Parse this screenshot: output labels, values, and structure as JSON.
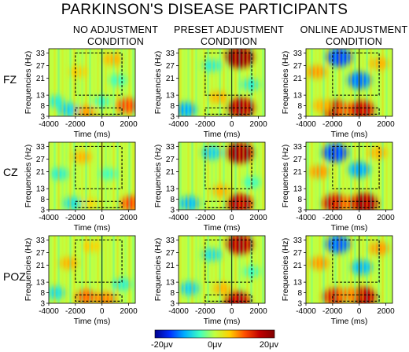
{
  "title": "PARKINSON'S DISEASE PARTICIPANTS",
  "conditions": [
    {
      "line1": "NO ADJUSTMENT",
      "line2": "CONDITION"
    },
    {
      "line1": "PRESET ADJUSTMENT",
      "line2": "CONDITION"
    },
    {
      "line1": "ONLINE ADJUSTMENT",
      "line2": "CONDITION"
    }
  ],
  "electrodes": [
    "FZ",
    "CZ",
    "POZ"
  ],
  "chart_data": {
    "type": "heatmap",
    "title": "PARKINSON'S DISEASE PARTICIPANTS",
    "xlabel": "Time (ms)",
    "ylabel": "Frequencies (Hz)",
    "xlim": [
      -4000,
      2500
    ],
    "ylim": [
      3,
      35
    ],
    "x_ticks": [
      -4000,
      -2000,
      0,
      2000
    ],
    "x_tick_labels": [
      "-4000",
      "-2000",
      "0",
      "2000"
    ],
    "y_ticks": [
      3,
      8,
      13,
      21,
      27,
      33
    ],
    "y_tick_labels": [
      "3",
      "8",
      "13",
      "21",
      "27",
      "33"
    ],
    "event_marker_x": 0,
    "boxes": [
      {
        "name": "beta window",
        "x": [
          -2000,
          1500
        ],
        "y": [
          13,
          33
        ]
      },
      {
        "name": "theta window",
        "x": [
          -2000,
          1500
        ],
        "y": [
          4,
          7
        ]
      }
    ],
    "colorbar": {
      "min_label": "-20μv",
      "mid_label": "0μv",
      "max_label": "20μv",
      "min": -20,
      "max": 20,
      "colors": [
        "#00008f",
        "#0030ff",
        "#00b0ff",
        "#40ffc0",
        "#c0ff40",
        "#ffd000",
        "#ff5000",
        "#c00000",
        "#800000"
      ]
    },
    "background_value": 0,
    "panels": [
      {
        "row": "FZ",
        "condition": "NO ADJUSTMENT CONDITION",
        "blobs": [
          {
            "t": -2500,
            "f": 6,
            "v": -8
          },
          {
            "t": -1200,
            "f": 5,
            "v": 7
          },
          {
            "t": -1800,
            "f": 24,
            "v": 5
          },
          {
            "t": 800,
            "f": 30,
            "v": 6
          },
          {
            "t": 1900,
            "f": 8,
            "v": 10
          },
          {
            "t": -3500,
            "f": 10,
            "v": -6
          },
          {
            "t": 0,
            "f": 10,
            "v": -5
          },
          {
            "t": 1200,
            "f": 20,
            "v": -5
          }
        ]
      },
      {
        "row": "FZ",
        "condition": "PRESET ADJUSTMENT CONDITION",
        "blobs": [
          {
            "t": 600,
            "f": 31,
            "v": 18
          },
          {
            "t": 700,
            "f": 7,
            "v": 16
          },
          {
            "t": -3500,
            "f": 6,
            "v": -10
          },
          {
            "t": -1500,
            "f": 27,
            "v": -6
          },
          {
            "t": -1000,
            "f": 12,
            "v": 6
          },
          {
            "t": 1400,
            "f": 18,
            "v": -6
          }
        ]
      },
      {
        "row": "FZ",
        "condition": "ONLINE ADJUSTMENT CONDITION",
        "blobs": [
          {
            "t": -1800,
            "f": 6,
            "v": 15
          },
          {
            "t": -800,
            "f": 6,
            "v": 9
          },
          {
            "t": 200,
            "f": 6,
            "v": 14
          },
          {
            "t": -1500,
            "f": 31,
            "v": -14
          },
          {
            "t": 0,
            "f": 20,
            "v": -12
          },
          {
            "t": -3200,
            "f": 24,
            "v": 7
          },
          {
            "t": 1500,
            "f": 28,
            "v": 6
          },
          {
            "t": -2800,
            "f": 8,
            "v": 6
          }
        ]
      },
      {
        "row": "CZ",
        "condition": "NO ADJUSTMENT CONDITION",
        "blobs": [
          {
            "t": 2200,
            "f": 6,
            "v": 10
          },
          {
            "t": -1500,
            "f": 28,
            "v": 6
          },
          {
            "t": -3200,
            "f": 20,
            "v": -6
          },
          {
            "t": -2200,
            "f": 6,
            "v": -7
          },
          {
            "t": -800,
            "f": 6,
            "v": 4
          },
          {
            "t": 500,
            "f": 20,
            "v": -5
          }
        ]
      },
      {
        "row": "CZ",
        "condition": "PRESET ADJUSTMENT CONDITION",
        "blobs": [
          {
            "t": 600,
            "f": 30,
            "v": 17
          },
          {
            "t": 600,
            "f": 6,
            "v": 15
          },
          {
            "t": -3200,
            "f": 6,
            "v": -9
          },
          {
            "t": -1500,
            "f": 30,
            "v": -8
          },
          {
            "t": -800,
            "f": 12,
            "v": 6
          },
          {
            "t": 1500,
            "f": 16,
            "v": -5
          }
        ]
      },
      {
        "row": "CZ",
        "condition": "ONLINE ADJUSTMENT CONDITION",
        "blobs": [
          {
            "t": -1800,
            "f": 6,
            "v": 14
          },
          {
            "t": -600,
            "f": 6,
            "v": 9
          },
          {
            "t": 400,
            "f": 6,
            "v": 16
          },
          {
            "t": -1800,
            "f": 30,
            "v": -14
          },
          {
            "t": 0,
            "f": 22,
            "v": -10
          },
          {
            "t": -3000,
            "f": 21,
            "v": 7
          },
          {
            "t": 1400,
            "f": 30,
            "v": 6
          }
        ]
      },
      {
        "row": "POZ",
        "condition": "NO ADJUSTMENT CONDITION",
        "blobs": [
          {
            "t": -1200,
            "f": 6,
            "v": 9
          },
          {
            "t": -2500,
            "f": 22,
            "v": 6
          },
          {
            "t": 300,
            "f": 5,
            "v": 8
          },
          {
            "t": -3500,
            "f": 8,
            "v": -7
          },
          {
            "t": 1500,
            "f": 12,
            "v": -6
          },
          {
            "t": -800,
            "f": 30,
            "v": 5
          }
        ]
      },
      {
        "row": "POZ",
        "condition": "PRESET ADJUSTMENT CONDITION",
        "blobs": [
          {
            "t": 600,
            "f": 31,
            "v": 16
          },
          {
            "t": 400,
            "f": 4,
            "v": 15
          },
          {
            "t": -3200,
            "f": 10,
            "v": -8
          },
          {
            "t": -1500,
            "f": 26,
            "v": -7
          },
          {
            "t": -700,
            "f": 10,
            "v": 6
          },
          {
            "t": 1500,
            "f": 18,
            "v": -5
          }
        ]
      },
      {
        "row": "POZ",
        "condition": "ONLINE ADJUSTMENT CONDITION",
        "blobs": [
          {
            "t": -1800,
            "f": 6,
            "v": 13
          },
          {
            "t": 300,
            "f": 6,
            "v": 15
          },
          {
            "t": -800,
            "f": 7,
            "v": 8
          },
          {
            "t": -1600,
            "f": 31,
            "v": -13
          },
          {
            "t": 200,
            "f": 20,
            "v": -9
          },
          {
            "t": -3000,
            "f": 22,
            "v": 7
          },
          {
            "t": 1500,
            "f": 29,
            "v": 7
          }
        ]
      }
    ]
  }
}
